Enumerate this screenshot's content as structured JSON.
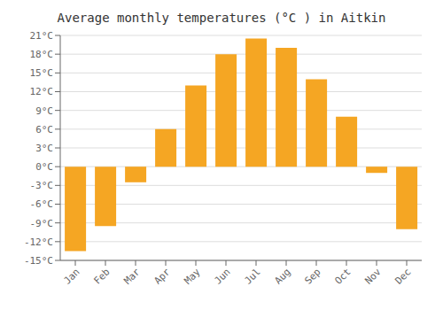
{
  "chart_data": {
    "type": "bar",
    "title": "Average monthly temperatures (°C ) in Aitkin",
    "categories": [
      "Jan",
      "Feb",
      "Mar",
      "Apr",
      "May",
      "Jun",
      "Jul",
      "Aug",
      "Sep",
      "Oct",
      "Nov",
      "Dec"
    ],
    "values": [
      -13.5,
      -9.5,
      -2.5,
      6.0,
      13.0,
      18.0,
      20.5,
      19.0,
      14.0,
      8.0,
      -1.0,
      -10.0
    ],
    "color": "#F5A623",
    "ylim": [
      -15,
      21
    ],
    "yticks": [
      {
        "value": -15,
        "label": "-15°C"
      },
      {
        "value": -12,
        "label": "-12°C"
      },
      {
        "value": -9,
        "label": "-9°C"
      },
      {
        "value": -6,
        "label": "-6°C"
      },
      {
        "value": -3,
        "label": "-3°C"
      },
      {
        "value": 0,
        "label": "0°C"
      },
      {
        "value": 3,
        "label": "3°C"
      },
      {
        "value": 6,
        "label": "6°C"
      },
      {
        "value": 9,
        "label": "9°C"
      },
      {
        "value": 12,
        "label": "12°C"
      },
      {
        "value": 15,
        "label": "15°C"
      },
      {
        "value": 18,
        "label": "18°C"
      },
      {
        "value": 21,
        "label": "21°C"
      }
    ],
    "grid": true
  }
}
